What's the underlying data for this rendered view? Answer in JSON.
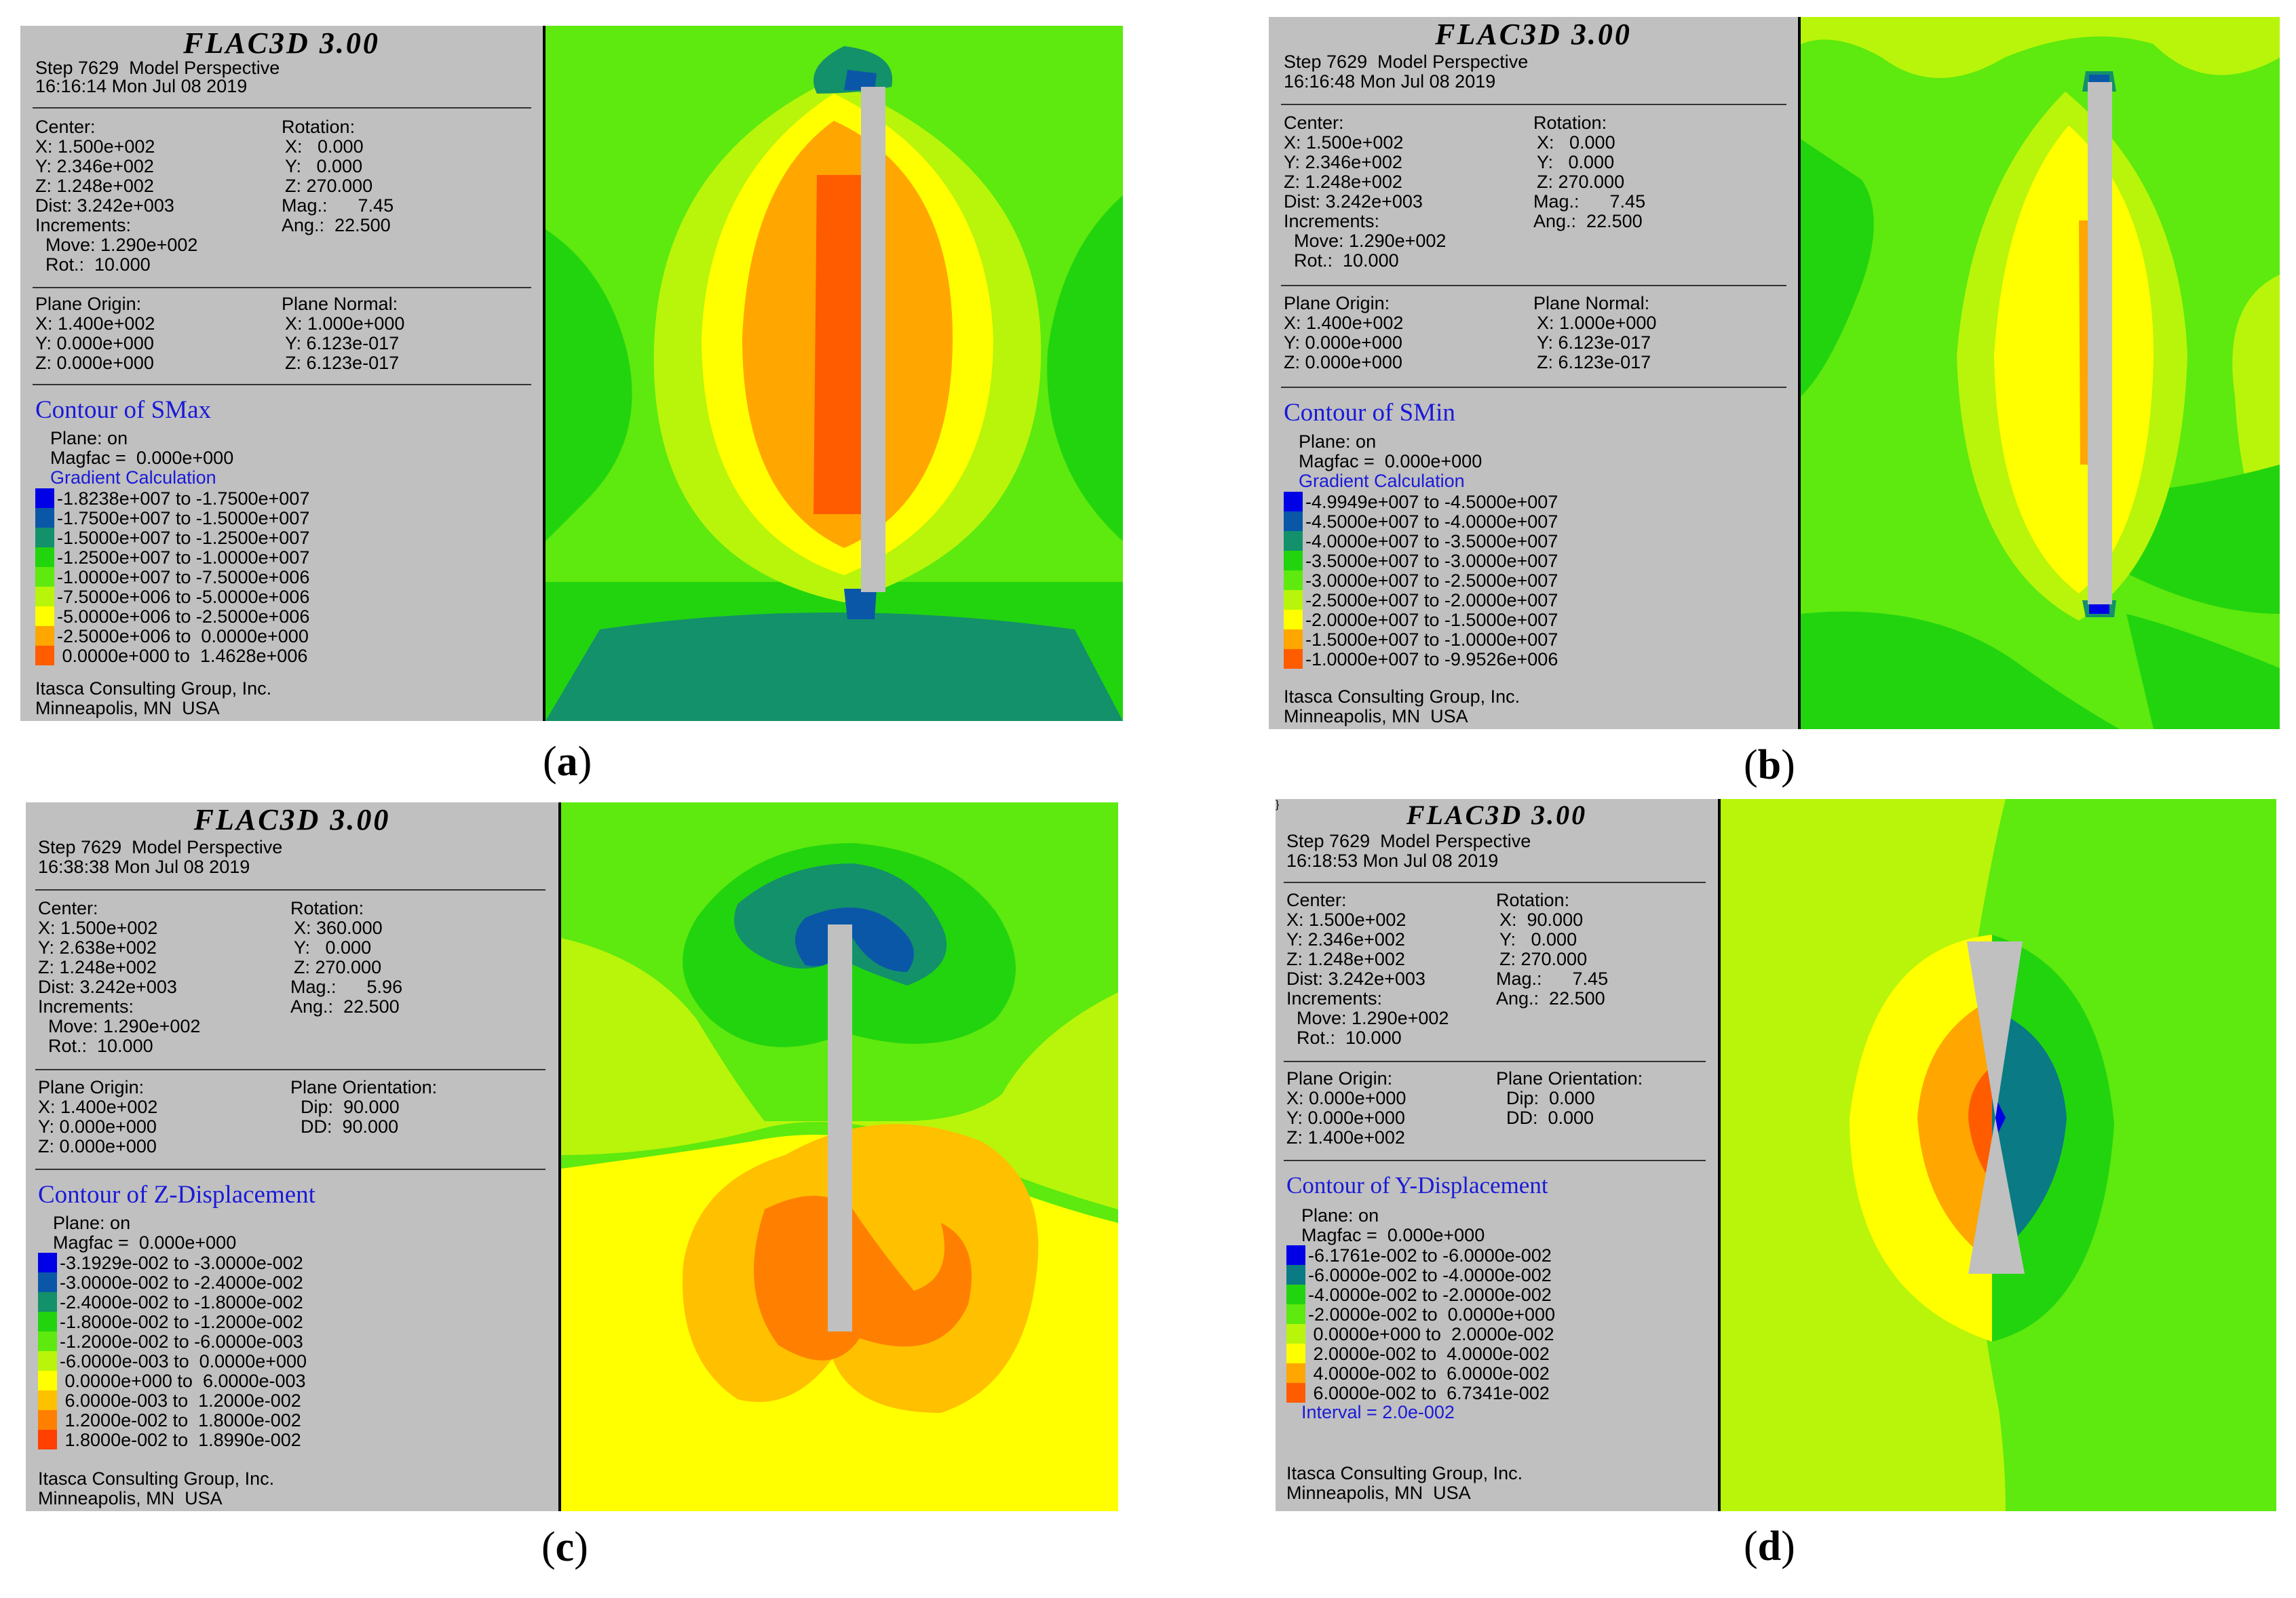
{
  "panels": [
    {
      "id": "a",
      "header": "FLAC3D 3.00",
      "step": "Step 7629  Model Perspective",
      "time": "16:16:14 Mon Jul 08 2019",
      "center": [
        "Center:",
        "X: 1.500e+002",
        "Y: 2.346e+002",
        "Z: 1.248e+002",
        "Dist: 3.242e+003",
        "Increments:",
        "  Move: 1.290e+002",
        "  Rot.:  10.000"
      ],
      "rotation": [
        "Rotation:",
        "X:   0.000",
        "Y:   0.000",
        "Z: 270.000",
        "Mag.:      7.45",
        "Ang.:  22.500"
      ],
      "plane_left": [
        "Plane Origin:",
        "X: 1.400e+002",
        "Y: 0.000e+000",
        "Z: 0.000e+000"
      ],
      "plane_right": [
        "Plane Normal:",
        "X: 1.000e+000",
        "Y: 6.123e-017",
        "Z: 6.123e-017"
      ],
      "contour_title": "Contour of SMax",
      "plane_on": "Plane: on",
      "magfac": "Magfac =  0.000e+000",
      "calc": "Gradient Calculation",
      "legend": [
        {
          "color": "#0000e6",
          "label": "-1.8238e+007 to -1.7500e+007"
        },
        {
          "color": "#0a57a8",
          "label": "-1.7500e+007 to -1.5000e+007"
        },
        {
          "color": "#13916a",
          "label": "-1.5000e+007 to -1.2500e+007"
        },
        {
          "color": "#22d40e",
          "label": "-1.2500e+007 to -1.0000e+007"
        },
        {
          "color": "#5ee90f",
          "label": "-1.0000e+007 to -7.5000e+006"
        },
        {
          "color": "#b8f50a",
          "label": "-7.5000e+006 to -5.0000e+006"
        },
        {
          "color": "#ffff00",
          "label": "-5.0000e+006 to -2.5000e+006"
        },
        {
          "color": "#ffa600",
          "label": "-2.5000e+006 to  0.0000e+000"
        },
        {
          "color": "#ff5c00",
          "label": " 0.0000e+000 to  1.4628e+006"
        }
      ],
      "company": "Itasca Consulting Group, Inc.",
      "location": "Minneapolis, MN  USA",
      "label": "a"
    },
    {
      "id": "b",
      "header": "FLAC3D 3.00",
      "step": "Step 7629  Model Perspective",
      "time": "16:16:48 Mon Jul 08 2019",
      "center": [
        "Center:",
        "X: 1.500e+002",
        "Y: 2.346e+002",
        "Z: 1.248e+002",
        "Dist: 3.242e+003",
        "Increments:",
        "  Move: 1.290e+002",
        "  Rot.:  10.000"
      ],
      "rotation": [
        "Rotation:",
        "X:   0.000",
        "Y:   0.000",
        "Z: 270.000",
        "Mag.:      7.45",
        "Ang.:  22.500"
      ],
      "plane_left": [
        "Plane Origin:",
        "X: 1.400e+002",
        "Y: 0.000e+000",
        "Z: 0.000e+000"
      ],
      "plane_right": [
        "Plane Normal:",
        "X: 1.000e+000",
        "Y: 6.123e-017",
        "Z: 6.123e-017"
      ],
      "contour_title": "Contour of SMin",
      "plane_on": "Plane: on",
      "magfac": "Magfac =  0.000e+000",
      "calc": "Gradient Calculation",
      "legend": [
        {
          "color": "#0000e6",
          "label": "-4.9949e+007 to -4.5000e+007"
        },
        {
          "color": "#0a57a8",
          "label": "-4.5000e+007 to -4.0000e+007"
        },
        {
          "color": "#13916a",
          "label": "-4.0000e+007 to -3.5000e+007"
        },
        {
          "color": "#22d40e",
          "label": "-3.5000e+007 to -3.0000e+007"
        },
        {
          "color": "#5ee90f",
          "label": "-3.0000e+007 to -2.5000e+007"
        },
        {
          "color": "#b8f50a",
          "label": "-2.5000e+007 to -2.0000e+007"
        },
        {
          "color": "#ffff00",
          "label": "-2.0000e+007 to -1.5000e+007"
        },
        {
          "color": "#ffa600",
          "label": "-1.5000e+007 to -1.0000e+007"
        },
        {
          "color": "#ff5c00",
          "label": "-1.0000e+007 to -9.9526e+006"
        }
      ],
      "company": "Itasca Consulting Group, Inc.",
      "location": "Minneapolis, MN  USA",
      "label": "b"
    },
    {
      "id": "c",
      "header": "FLAC3D 3.00",
      "step": "Step 7629  Model Perspective",
      "time": "16:38:38 Mon Jul 08 2019",
      "center": [
        "Center:",
        "X: 1.500e+002",
        "Y: 2.638e+002",
        "Z: 1.248e+002",
        "Dist: 3.242e+003",
        "Increments:",
        "  Move: 1.290e+002",
        "  Rot.:  10.000"
      ],
      "rotation": [
        "Rotation:",
        "X: 360.000",
        "Y:   0.000",
        "Z: 270.000",
        "Mag.:      5.96",
        "Ang.:  22.500"
      ],
      "plane_left": [
        "Plane Origin:",
        "X: 1.400e+002",
        "Y: 0.000e+000",
        "Z: 0.000e+000"
      ],
      "plane_right": [
        "Plane Orientation:",
        "  Dip:  90.000",
        "  DD:  90.000"
      ],
      "contour_title": "Contour of Z-Displacement",
      "plane_on": "Plane: on",
      "magfac": "Magfac =  0.000e+000",
      "calc": "",
      "legend": [
        {
          "color": "#0000e6",
          "label": "-3.1929e-002 to -3.0000e-002"
        },
        {
          "color": "#0a57a8",
          "label": "-3.0000e-002 to -2.4000e-002"
        },
        {
          "color": "#13916a",
          "label": "-2.4000e-002 to -1.8000e-002"
        },
        {
          "color": "#22d40e",
          "label": "-1.8000e-002 to -1.2000e-002"
        },
        {
          "color": "#5ee90f",
          "label": "-1.2000e-002 to -6.0000e-003"
        },
        {
          "color": "#b8f50a",
          "label": "-6.0000e-003 to  0.0000e+000"
        },
        {
          "color": "#ffff00",
          "label": " 0.0000e+000 to  6.0000e-003"
        },
        {
          "color": "#ffc000",
          "label": " 6.0000e-003 to  1.2000e-002"
        },
        {
          "color": "#ff8000",
          "label": " 1.2000e-002 to  1.8000e-002"
        },
        {
          "color": "#ff4000",
          "label": " 1.8000e-002 to  1.8990e-002"
        }
      ],
      "company": "Itasca Consulting Group, Inc.",
      "location": "Minneapolis, MN  USA",
      "label": "c"
    },
    {
      "id": "d",
      "header": "FLAC3D 3.00",
      "step": "Step 7629  Model Perspective",
      "time": "16:18:53 Mon Jul 08 2019",
      "center": [
        "Center:",
        "X: 1.500e+002",
        "Y: 2.346e+002",
        "Z: 1.248e+002",
        "Dist: 3.242e+003",
        "Increments:",
        "  Move: 1.290e+002",
        "  Rot.:  10.000"
      ],
      "rotation": [
        "Rotation:",
        "X:  90.000",
        "Y:   0.000",
        "Z: 270.000",
        "Mag.:      7.45",
        "Ang.:  22.500"
      ],
      "plane_left": [
        "Plane Origin:",
        "X: 0.000e+000",
        "Y: 0.000e+000",
        "Z: 1.400e+002"
      ],
      "plane_right": [
        "Plane Orientation:",
        "  Dip:  0.000",
        "  DD:  0.000"
      ],
      "contour_title": "Contour of Y-Displacement",
      "plane_on": "Plane: on",
      "magfac": "Magfac =  0.000e+000",
      "calc": "",
      "interval": "Interval = 2.0e-002",
      "legend": [
        {
          "color": "#0000e6",
          "label": "-6.1761e-002 to -6.0000e-002"
        },
        {
          "color": "#0a7a84",
          "label": "-6.0000e-002 to -4.0000e-002"
        },
        {
          "color": "#22d40e",
          "label": "-4.0000e-002 to -2.0000e-002"
        },
        {
          "color": "#5ee90f",
          "label": "-2.0000e-002 to  0.0000e+000"
        },
        {
          "color": "#b8f50a",
          "label": " 0.0000e+000 to  2.0000e-002"
        },
        {
          "color": "#ffff00",
          "label": " 2.0000e-002 to  4.0000e-002"
        },
        {
          "color": "#ffa600",
          "label": " 4.0000e-002 to  6.0000e-002"
        },
        {
          "color": "#ff5c00",
          "label": " 6.0000e-002 to  6.7341e-002"
        }
      ],
      "company": "Itasca Consulting Group, Inc.",
      "location": "Minneapolis, MN  USA",
      "label": "d"
    }
  ],
  "colors": {
    "panel_bg": "#c0c0c0",
    "title_blue": "#1a1ad8",
    "shaft": "#c0c0c0"
  }
}
